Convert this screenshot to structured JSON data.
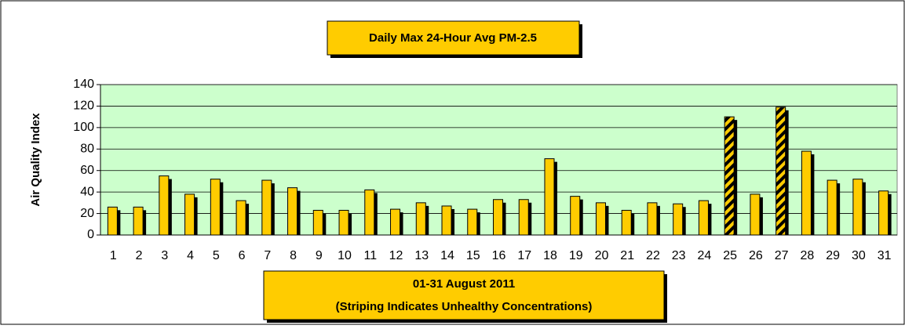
{
  "chart_data": {
    "type": "bar",
    "title": "Daily Max 24-Hour Avg PM-2.5",
    "ylabel": "Air Quality Index",
    "xlabel": [
      "01-31 August 2011",
      "(Striping Indicates Unhealthy Concentrations)"
    ],
    "categories": [
      "1",
      "2",
      "3",
      "4",
      "5",
      "6",
      "7",
      "8",
      "9",
      "10",
      "11",
      "12",
      "13",
      "14",
      "15",
      "16",
      "17",
      "18",
      "19",
      "20",
      "21",
      "22",
      "23",
      "24",
      "25",
      "26",
      "27",
      "28",
      "29",
      "30",
      "31"
    ],
    "values": [
      26,
      26,
      55,
      38,
      52,
      32,
      51,
      44,
      23,
      23,
      42,
      24,
      30,
      27,
      24,
      33,
      33,
      71,
      36,
      30,
      23,
      30,
      29,
      32,
      110,
      38,
      119,
      78,
      51,
      52,
      41
    ],
    "striped": [
      false,
      false,
      false,
      false,
      false,
      false,
      false,
      false,
      false,
      false,
      false,
      false,
      false,
      false,
      false,
      false,
      false,
      false,
      false,
      false,
      false,
      false,
      false,
      false,
      true,
      false,
      true,
      false,
      false,
      false,
      false
    ],
    "color": "#ffcc00",
    "plot_background": "#ccffcc",
    "ylim": [
      0,
      140
    ],
    "yticks": [
      0,
      20,
      40,
      60,
      80,
      100,
      120,
      140
    ],
    "grid": true
  }
}
